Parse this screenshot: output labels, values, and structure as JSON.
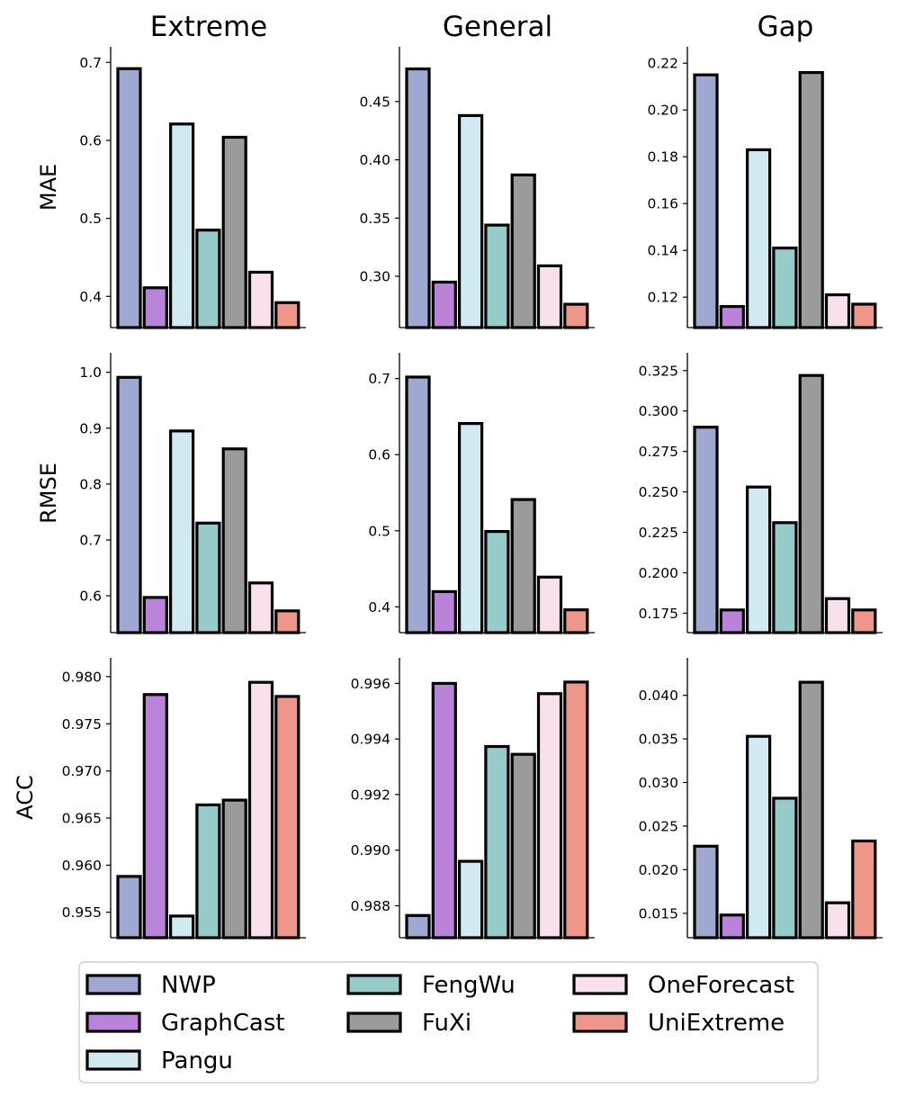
{
  "figure": {
    "columns": [
      "Extreme",
      "General",
      "Gap"
    ],
    "rows": [
      "MAE",
      "RMSE",
      "ACC"
    ]
  },
  "legend": [
    {
      "name": "NWP",
      "color": "#9fa8d0"
    },
    {
      "name": "GraphCast",
      "color": "#b883d8"
    },
    {
      "name": "Pangu",
      "color": "#d1e9f0"
    },
    {
      "name": "FengWu",
      "color": "#97cbca"
    },
    {
      "name": "FuXi",
      "color": "#9b9b9b"
    },
    {
      "name": "OneForecast",
      "color": "#f8e0ec"
    },
    {
      "name": "UniExtreme",
      "color": "#ef968a"
    }
  ],
  "chart_data": [
    {
      "type": "bar",
      "row": "MAE",
      "column": "Extreme",
      "categories": [
        "NWP",
        "GraphCast",
        "Pangu",
        "FengWu",
        "FuXi",
        "OneForecast",
        "UniExtreme"
      ],
      "values": [
        0.692,
        0.411,
        0.621,
        0.485,
        0.604,
        0.431,
        0.392
      ],
      "ylim": [
        0.36,
        0.72
      ],
      "yticks": [
        0.4,
        0.5,
        0.6,
        0.7
      ],
      "ytick_labels": [
        "0.4",
        "0.5",
        "0.6",
        "0.7"
      ]
    },
    {
      "type": "bar",
      "row": "MAE",
      "column": "General",
      "categories": [
        "NWP",
        "GraphCast",
        "Pangu",
        "FengWu",
        "FuXi",
        "OneForecast",
        "UniExtreme"
      ],
      "values": [
        0.478,
        0.295,
        0.438,
        0.344,
        0.387,
        0.309,
        0.276
      ],
      "ylim": [
        0.256,
        0.497
      ],
      "yticks": [
        0.3,
        0.35,
        0.4,
        0.45
      ],
      "ytick_labels": [
        "0.30",
        "0.35",
        "0.40",
        "0.45"
      ]
    },
    {
      "type": "bar",
      "row": "MAE",
      "column": "Gap",
      "categories": [
        "NWP",
        "GraphCast",
        "Pangu",
        "FengWu",
        "FuXi",
        "OneForecast",
        "UniExtreme"
      ],
      "values": [
        0.215,
        0.116,
        0.183,
        0.141,
        0.216,
        0.121,
        0.117
      ],
      "ylim": [
        0.107,
        0.227
      ],
      "yticks": [
        0.12,
        0.14,
        0.16,
        0.18,
        0.2,
        0.22
      ],
      "ytick_labels": [
        "0.12",
        "0.14",
        "0.16",
        "0.18",
        "0.20",
        "0.22"
      ]
    },
    {
      "type": "bar",
      "row": "RMSE",
      "column": "Extreme",
      "categories": [
        "NWP",
        "GraphCast",
        "Pangu",
        "FengWu",
        "FuXi",
        "OneForecast",
        "UniExtreme"
      ],
      "values": [
        0.991,
        0.597,
        0.895,
        0.73,
        0.863,
        0.623,
        0.573
      ],
      "ylim": [
        0.534,
        1.035
      ],
      "yticks": [
        0.6,
        0.7,
        0.8,
        0.9,
        1.0
      ],
      "ytick_labels": [
        "0.6",
        "0.7",
        "0.8",
        "0.9",
        "1.0"
      ]
    },
    {
      "type": "bar",
      "row": "RMSE",
      "column": "General",
      "categories": [
        "NWP",
        "GraphCast",
        "Pangu",
        "FengWu",
        "FuXi",
        "OneForecast",
        "UniExtreme"
      ],
      "values": [
        0.702,
        0.42,
        0.641,
        0.499,
        0.541,
        0.439,
        0.396
      ],
      "ylim": [
        0.366,
        0.734
      ],
      "yticks": [
        0.4,
        0.5,
        0.6,
        0.7
      ],
      "ytick_labels": [
        "0.4",
        "0.5",
        "0.6",
        "0.7"
      ]
    },
    {
      "type": "bar",
      "row": "RMSE",
      "column": "Gap",
      "categories": [
        "NWP",
        "GraphCast",
        "Pangu",
        "FengWu",
        "FuXi",
        "OneForecast",
        "UniExtreme"
      ],
      "values": [
        0.29,
        0.177,
        0.253,
        0.231,
        0.322,
        0.184,
        0.177
      ],
      "ylim": [
        0.163,
        0.336
      ],
      "yticks": [
        0.175,
        0.2,
        0.225,
        0.25,
        0.275,
        0.3,
        0.325
      ],
      "ytick_labels": [
        "0.175",
        "0.200",
        "0.225",
        "0.250",
        "0.275",
        "0.300",
        "0.325"
      ]
    },
    {
      "type": "bar",
      "row": "ACC",
      "column": "Extreme",
      "categories": [
        "NWP",
        "GraphCast",
        "Pangu",
        "FengWu",
        "FuXi",
        "OneForecast",
        "UniExtreme"
      ],
      "values": [
        0.9588,
        0.9781,
        0.9546,
        0.9664,
        0.9669,
        0.9794,
        0.9779
      ],
      "ylim": [
        0.9523,
        0.982
      ],
      "yticks": [
        0.955,
        0.96,
        0.965,
        0.97,
        0.975,
        0.98
      ],
      "ytick_labels": [
        "0.955",
        "0.960",
        "0.965",
        "0.970",
        "0.975",
        "0.980"
      ]
    },
    {
      "type": "bar",
      "row": "ACC",
      "column": "General",
      "categories": [
        "NWP",
        "GraphCast",
        "Pangu",
        "FengWu",
        "FuXi",
        "OneForecast",
        "UniExtreme"
      ],
      "values": [
        0.98765,
        0.996,
        0.9896,
        0.99373,
        0.99345,
        0.99563,
        0.99605
      ],
      "ylim": [
        0.98685,
        0.99692
      ],
      "yticks": [
        0.988,
        0.99,
        0.992,
        0.994,
        0.996
      ],
      "ytick_labels": [
        "0.988",
        "0.990",
        "0.992",
        "0.994",
        "0.996"
      ]
    },
    {
      "type": "bar",
      "row": "ACC",
      "column": "Gap",
      "categories": [
        "NWP",
        "GraphCast",
        "Pangu",
        "FengWu",
        "FuXi",
        "OneForecast",
        "UniExtreme"
      ],
      "values": [
        0.0227,
        0.0148,
        0.0353,
        0.0282,
        0.0415,
        0.0162,
        0.0233
      ],
      "ylim": [
        0.0122,
        0.0443
      ],
      "yticks": [
        0.015,
        0.02,
        0.025,
        0.03,
        0.035,
        0.04
      ],
      "ytick_labels": [
        "0.015",
        "0.020",
        "0.025",
        "0.030",
        "0.035",
        "0.040"
      ]
    }
  ]
}
